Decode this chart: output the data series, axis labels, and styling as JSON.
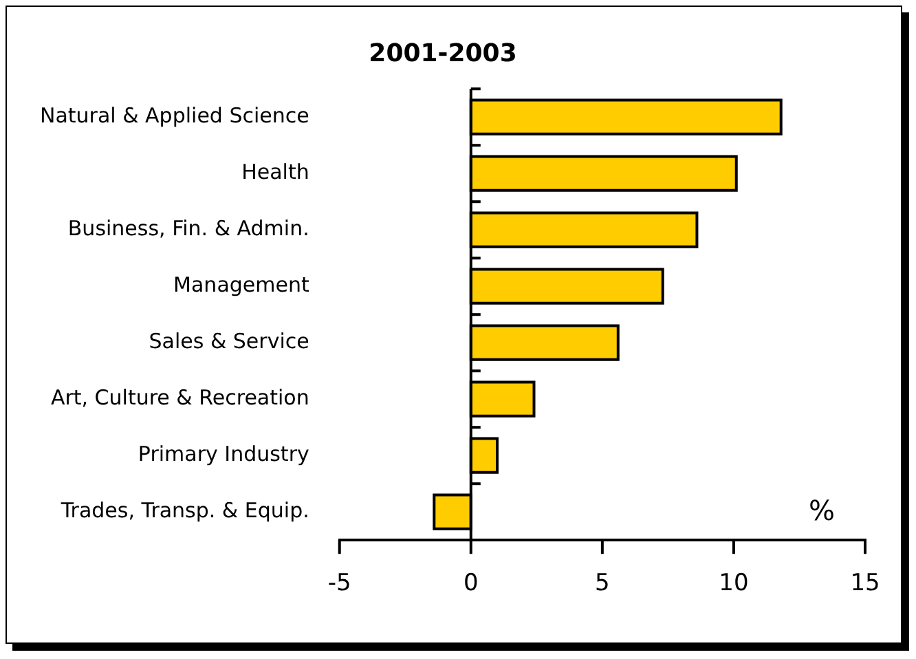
{
  "chart_data": {
    "type": "bar",
    "orientation": "horizontal",
    "title": "2001-2003",
    "categories": [
      "Natural & Applied Science",
      "Health",
      "Business, Fin. & Admin.",
      "Management",
      "Sales & Service",
      "Art, Culture & Recreation",
      "Primary Industry",
      "Trades, Transp. & Equip."
    ],
    "values": [
      11.8,
      10.1,
      8.6,
      7.3,
      5.6,
      2.4,
      1.0,
      -1.4
    ],
    "color": "#ffcc00",
    "xlim": [
      -5,
      15
    ],
    "xticks": [
      -5,
      0,
      5,
      10,
      15
    ],
    "annotations": [
      "%"
    ],
    "ref_lines": [
      {
        "axis": "x",
        "value": 0,
        "color": "#000000"
      }
    ],
    "grid": false,
    "legend": false
  }
}
